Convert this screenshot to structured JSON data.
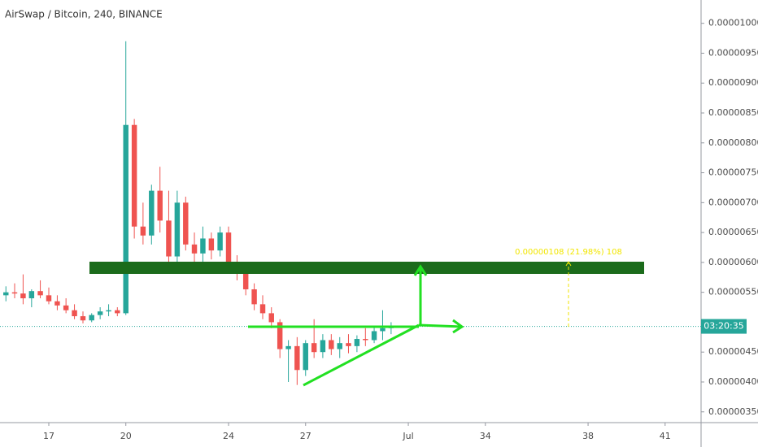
{
  "chart_data": {
    "type": "candlestick",
    "title": "AirSwap / Bitcoin, 240, BINANCE",
    "x": [
      15.33,
      15.67,
      16,
      16.33,
      16.67,
      17,
      17.33,
      17.67,
      18,
      18.33,
      18.67,
      19,
      19.33,
      19.67,
      20,
      20.33,
      20.67,
      21,
      21.33,
      21.67,
      22,
      22.33,
      22.67,
      23,
      23.33,
      23.67,
      24,
      24.33,
      24.67,
      25,
      25.33,
      25.67,
      26,
      26.33,
      26.67,
      27,
      27.33,
      27.67,
      28,
      28.33,
      28.67,
      29,
      29.33,
      29.67,
      30,
      30.33
    ],
    "open": [
      5.45e-06,
      5.5e-06,
      5.48e-06,
      5.4e-06,
      5.52e-06,
      5.45e-06,
      5.35e-06,
      5.28e-06,
      5.2e-06,
      5.1e-06,
      5.03e-06,
      5.12e-06,
      5.18e-06,
      5.2e-06,
      5.15e-06,
      8.3e-06,
      6.6e-06,
      6.45e-06,
      7.2e-06,
      6.7e-06,
      6.1e-06,
      7e-06,
      6.3e-06,
      6.15e-06,
      6.4e-06,
      6.2e-06,
      6.5e-06,
      6e-06,
      5.85e-06,
      5.55e-06,
      5.3e-06,
      5.15e-06,
      5e-06,
      4.55e-06,
      4.6e-06,
      4.2e-06,
      4.65e-06,
      4.5e-06,
      4.7e-06,
      4.55e-06,
      4.65e-06,
      4.6e-06,
      4.72e-06,
      4.7e-06,
      4.85e-06,
      4.9e-06
    ],
    "high": [
      5.6e-06,
      5.65e-06,
      5.8e-06,
      5.55e-06,
      5.7e-06,
      5.58e-06,
      5.45e-06,
      5.4e-06,
      5.3e-06,
      5.18e-06,
      5.15e-06,
      5.25e-06,
      5.3e-06,
      5.25e-06,
      9.7e-06,
      8.4e-06,
      7e-06,
      7.3e-06,
      7.6e-06,
      7.2e-06,
      7.2e-06,
      7.1e-06,
      6.5e-06,
      6.6e-06,
      6.5e-06,
      6.6e-06,
      6.6e-06,
      6.12e-06,
      5.9e-06,
      5.65e-06,
      5.45e-06,
      5.25e-06,
      5.05e-06,
      4.7e-06,
      4.75e-06,
      4.7e-06,
      5.05e-06,
      4.8e-06,
      4.8e-06,
      4.75e-06,
      4.8e-06,
      4.78e-06,
      4.9e-06,
      4.92e-06,
      5.2e-06,
      5e-06
    ],
    "low": [
      5.35e-06,
      5.4e-06,
      5.3e-06,
      5.25e-06,
      5.4e-06,
      5.3e-06,
      5.2e-06,
      5.15e-06,
      5.05e-06,
      4.98e-06,
      5e-06,
      5.05e-06,
      5.1e-06,
      5.1e-06,
      5.12e-06,
      6.4e-06,
      6.3e-06,
      6.3e-06,
      6.5e-06,
      6e-06,
      5.9e-06,
      6.2e-06,
      6e-06,
      6e-06,
      6.05e-06,
      6.1e-06,
      5.9e-06,
      5.7e-06,
      5.45e-06,
      5.2e-06,
      5.05e-06,
      4.9e-06,
      4.4e-06,
      4e-06,
      3.95e-06,
      4.1e-06,
      4.4e-06,
      4.4e-06,
      4.45e-06,
      4.4e-06,
      4.48e-06,
      4.5e-06,
      4.6e-06,
      4.65e-06,
      4.7e-06,
      4.8e-06
    ],
    "close": [
      5.5e-06,
      5.48e-06,
      5.4e-06,
      5.52e-06,
      5.45e-06,
      5.35e-06,
      5.28e-06,
      5.2e-06,
      5.1e-06,
      5.03e-06,
      5.12e-06,
      5.18e-06,
      5.2e-06,
      5.15e-06,
      8.3e-06,
      6.6e-06,
      6.45e-06,
      7.2e-06,
      6.7e-06,
      6.1e-06,
      7e-06,
      6.3e-06,
      6.15e-06,
      6.4e-06,
      6.2e-06,
      6.5e-06,
      6e-06,
      5.85e-06,
      5.55e-06,
      5.3e-06,
      5.15e-06,
      5e-06,
      4.55e-06,
      4.6e-06,
      4.2e-06,
      4.65e-06,
      4.5e-06,
      4.7e-06,
      4.55e-06,
      4.65e-06,
      4.6e-06,
      4.72e-06,
      4.7e-06,
      4.85e-06,
      4.9e-06,
      4.93e-06
    ],
    "up_color": "#26a69a",
    "down_color": "#ef5350",
    "xlim": [
      15.1,
      42.4
    ],
    "xticks": [
      17,
      20,
      24,
      27,
      {
        "value": 31,
        "label": "Jul"
      },
      34,
      38,
      41
    ],
    "ylim": [
      3.32e-06,
      1.039e-05
    ],
    "yticks": [
      {
        "value": 1e-05,
        "label": "0.00001000"
      },
      {
        "value": 9.5e-06,
        "label": "0.00000950"
      },
      {
        "value": 9e-06,
        "label": "0.00000900"
      },
      {
        "value": 8.5e-06,
        "label": "0.00000850"
      },
      {
        "value": 8e-06,
        "label": "0.00000800"
      },
      {
        "value": 7.5e-06,
        "label": "0.00000750"
      },
      {
        "value": 7e-06,
        "label": "0.00000700"
      },
      {
        "value": 6.5e-06,
        "label": "0.00000650"
      },
      {
        "value": 6e-06,
        "label": "0.00000600"
      },
      {
        "value": 5.5e-06,
        "label": "0.00000550"
      },
      {
        "value": 4.5e-06,
        "label": "0.00000450"
      },
      {
        "value": 4e-06,
        "label": "0.00000400"
      },
      {
        "value": 3.5e-06,
        "label": "0.00000350"
      }
    ],
    "countdown": "03:20:35",
    "measure_label": "0.00000108 (21.98%) 108"
  }
}
